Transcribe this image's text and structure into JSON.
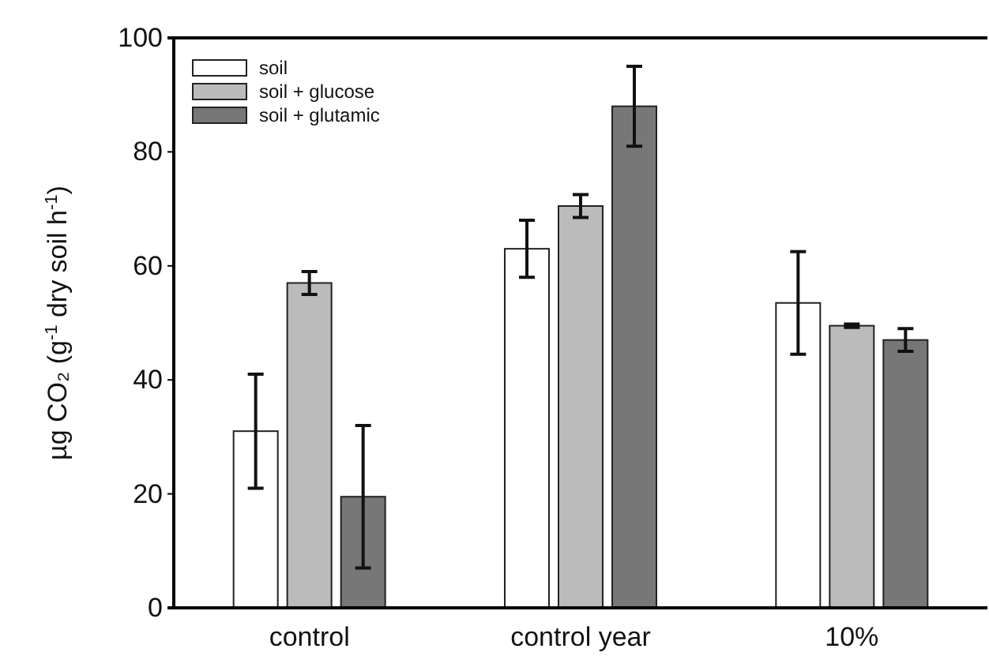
{
  "chart_data": {
    "type": "bar",
    "ylabel": "µg CO₂ (g$^{-1}$ dry soil h$^{-1}$)",
    "categories": [
      "control",
      "control year",
      "10%"
    ],
    "series": [
      {
        "name": "soil",
        "color": "#ffffff",
        "values": [
          31,
          63,
          53.5
        ],
        "errors": [
          [
            21,
            41
          ],
          [
            58,
            68
          ],
          [
            44.5,
            62.5
          ]
        ]
      },
      {
        "name": "soil + glucose",
        "color": "#bbbbbb",
        "values": [
          57,
          70.5,
          49.5
        ],
        "errors": [
          [
            55,
            59
          ],
          [
            68.5,
            72.5
          ],
          [
            49.2,
            49.8
          ]
        ]
      },
      {
        "name": "soil + glutamic",
        "color": "#777777",
        "values": [
          19.5,
          88,
          47
        ],
        "errors": [
          [
            7,
            32
          ],
          [
            81,
            95
          ],
          [
            45,
            49
          ]
        ]
      }
    ],
    "ylim": [
      0,
      100
    ],
    "yticks": [
      0,
      20,
      40,
      60,
      80,
      100
    ],
    "legend": "top left"
  }
}
